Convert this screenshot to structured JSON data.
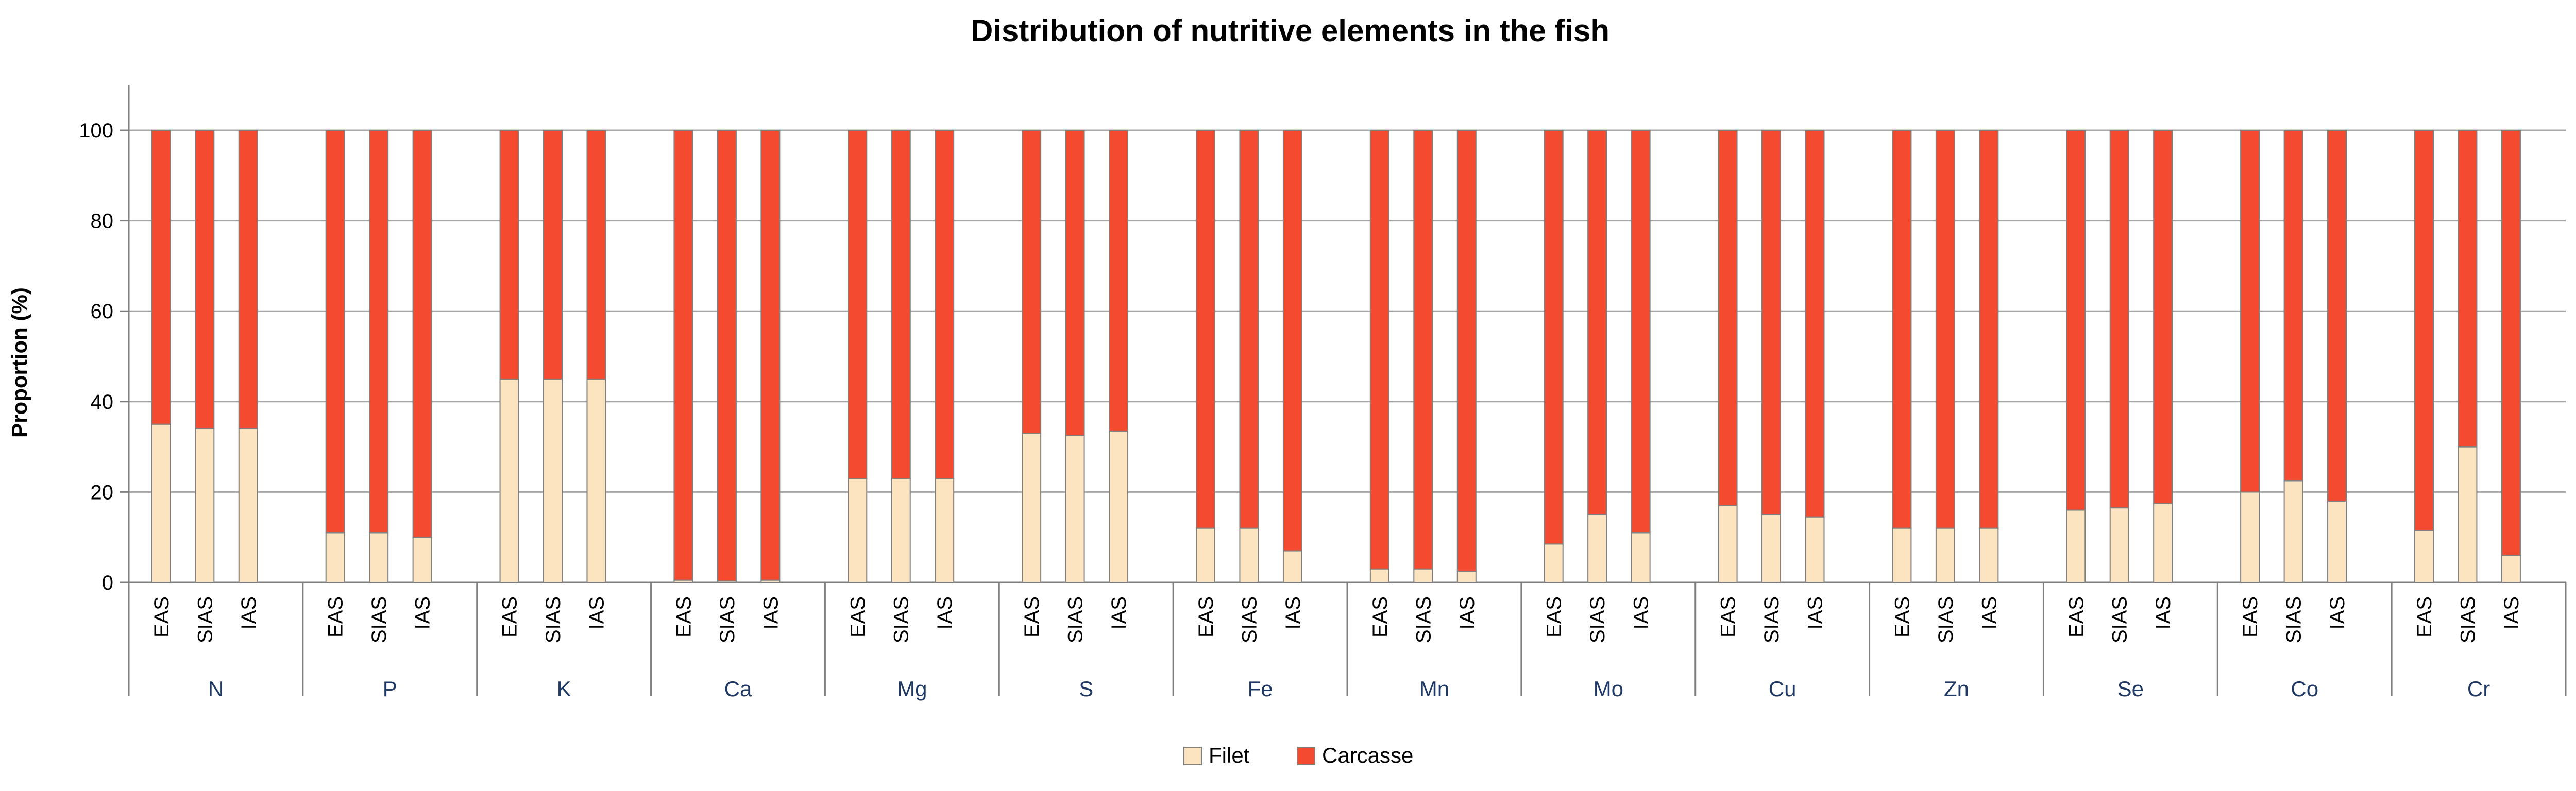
{
  "chart_data": {
    "type": "bar",
    "stacked": true,
    "title": "Distribution of nutritive elements in the fish",
    "xlabel": "",
    "ylabel": "Proportion (%)",
    "ylim": [
      0,
      100
    ],
    "yticks": [
      0,
      20,
      40,
      60,
      80,
      100
    ],
    "grid": true,
    "legend_position": "bottom",
    "groups": [
      "N",
      "P",
      "K",
      "Ca",
      "Mg",
      "S",
      "Fe",
      "Mn",
      "Mo",
      "Cu",
      "Zn",
      "Se",
      "Co",
      "Cr"
    ],
    "subcategories": [
      "EAS",
      "SIAS",
      "IAS"
    ],
    "series": [
      {
        "name": "Filet",
        "color": "#fce4c0",
        "values": [
          [
            35,
            34,
            34
          ],
          [
            11,
            11,
            10
          ],
          [
            45,
            45,
            45
          ],
          [
            0.5,
            0.3,
            0.5
          ],
          [
            23,
            23,
            23
          ],
          [
            33,
            32.5,
            33.5
          ],
          [
            12,
            12,
            7
          ],
          [
            3,
            3,
            2.5
          ],
          [
            8.5,
            15,
            11
          ],
          [
            17,
            15,
            14.5
          ],
          [
            12,
            12,
            12
          ],
          [
            16,
            16.5,
            17.5
          ],
          [
            20,
            22.5,
            18
          ],
          [
            11.5,
            30,
            6
          ]
        ]
      },
      {
        "name": "Carcasse",
        "color": "#f44b30",
        "values": [
          [
            65,
            66,
            66
          ],
          [
            89,
            89,
            90
          ],
          [
            55,
            55,
            55
          ],
          [
            99.5,
            99.7,
            99.5
          ],
          [
            77,
            77,
            77
          ],
          [
            67,
            67.5,
            66.5
          ],
          [
            88,
            88,
            93
          ],
          [
            97,
            97,
            97.5
          ],
          [
            91.5,
            85,
            89
          ],
          [
            83,
            85,
            85.5
          ],
          [
            88,
            88,
            88
          ],
          [
            84,
            83.5,
            82.5
          ],
          [
            80,
            77.5,
            82
          ],
          [
            88.5,
            70,
            94
          ]
        ]
      }
    ]
  },
  "colors": {
    "filet": "#fce4c0",
    "carcasse": "#f44b30",
    "grid": "#a6a6a6",
    "axis": "#808080",
    "group_label": "#1f3864"
  }
}
